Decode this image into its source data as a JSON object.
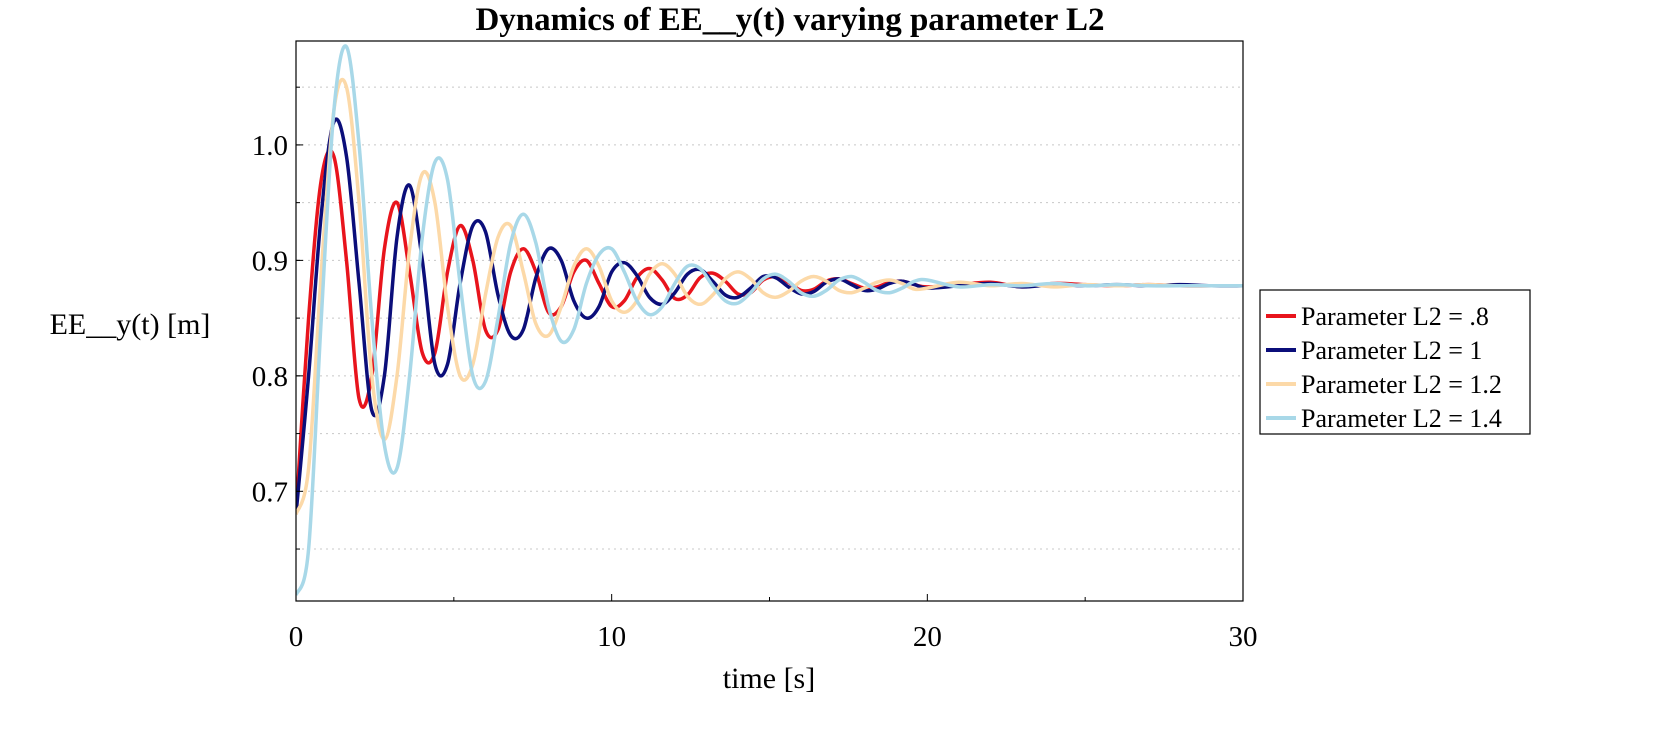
{
  "chart_data": {
    "type": "line",
    "title": "Dynamics of EE__y(t) varying parameter L2",
    "xlabel": "time [s]",
    "ylabel": "EE__y(t) [m]",
    "xlim": [
      0,
      30
    ],
    "ylim": [
      0.605,
      1.09
    ],
    "x_ticks": [
      0,
      10,
      20,
      30
    ],
    "x_tick_labels": [
      "0",
      "10",
      "20",
      "30"
    ],
    "y_ticks": [
      0.7,
      0.8,
      0.9,
      1.0
    ],
    "y_tick_labels": [
      "0.7",
      "0.8",
      "0.9",
      "1.0"
    ],
    "grid": "horizontal dotted",
    "legend_position": "right",
    "series": [
      {
        "name": "Parameter L2 = .8",
        "color": "#e8141c",
        "x": [
          0,
          0.4,
          0.8,
          1.2,
          1.6,
          2.0,
          2.4,
          2.8,
          3.2,
          3.6,
          4.0,
          4.4,
          4.8,
          5.2,
          5.6,
          6.0,
          6.4,
          6.8,
          7.2,
          7.6,
          8.0,
          8.4,
          8.8,
          9.2,
          9.6,
          10.0,
          10.4,
          10.8,
          11.2,
          11.6,
          12.0,
          12.4,
          12.8,
          13.2,
          13.6,
          14.0,
          14.4,
          14.8,
          15.2,
          15.6,
          16.0,
          16.4,
          16.8,
          17.2,
          17.6,
          18.0,
          18.4,
          18.8,
          19.2,
          19.6,
          20.0,
          21.0,
          22.0,
          23.0,
          24.0,
          25.0,
          26.0,
          27.0,
          28.0,
          29.0,
          30.0
        ],
        "y": [
          0.68,
          0.85,
          0.97,
          0.99,
          0.9,
          0.78,
          0.8,
          0.91,
          0.95,
          0.89,
          0.82,
          0.82,
          0.89,
          0.93,
          0.9,
          0.84,
          0.84,
          0.89,
          0.91,
          0.89,
          0.855,
          0.86,
          0.89,
          0.9,
          0.88,
          0.86,
          0.865,
          0.885,
          0.893,
          0.883,
          0.867,
          0.87,
          0.885,
          0.889,
          0.882,
          0.871,
          0.872,
          0.883,
          0.886,
          0.881,
          0.874,
          0.875,
          0.882,
          0.884,
          0.88,
          0.876,
          0.877,
          0.881,
          0.882,
          0.879,
          0.877,
          0.879,
          0.881,
          0.877,
          0.88,
          0.879,
          0.878,
          0.879,
          0.878,
          0.878,
          0.878
        ]
      },
      {
        "name": "Parameter L2 = 1",
        "color": "#0b0e7a",
        "x": [
          0,
          0.4,
          0.8,
          1.2,
          1.6,
          2.0,
          2.4,
          2.8,
          3.2,
          3.6,
          4.0,
          4.4,
          4.8,
          5.2,
          5.6,
          6.0,
          6.4,
          6.8,
          7.2,
          7.6,
          8.0,
          8.4,
          8.8,
          9.2,
          9.6,
          10.0,
          10.4,
          10.8,
          11.2,
          11.6,
          12.0,
          12.4,
          12.8,
          13.2,
          13.6,
          14.0,
          14.4,
          14.8,
          15.2,
          15.6,
          16.0,
          16.4,
          16.8,
          17.2,
          17.6,
          18.0,
          18.4,
          18.8,
          19.2,
          19.6,
          20.0,
          21.0,
          22.0,
          23.0,
          24.0,
          25.0,
          26.0,
          27.0,
          28.0,
          29.0,
          30.0
        ],
        "y": [
          0.68,
          0.8,
          0.94,
          1.02,
          0.99,
          0.88,
          0.77,
          0.8,
          0.92,
          0.965,
          0.9,
          0.81,
          0.81,
          0.88,
          0.93,
          0.925,
          0.87,
          0.835,
          0.84,
          0.885,
          0.91,
          0.9,
          0.865,
          0.85,
          0.86,
          0.89,
          0.898,
          0.887,
          0.868,
          0.862,
          0.872,
          0.888,
          0.892,
          0.882,
          0.87,
          0.868,
          0.876,
          0.886,
          0.885,
          0.877,
          0.871,
          0.873,
          0.881,
          0.884,
          0.879,
          0.874,
          0.875,
          0.88,
          0.882,
          0.879,
          0.876,
          0.878,
          0.88,
          0.877,
          0.879,
          0.878,
          0.879,
          0.878,
          0.879,
          0.878,
          0.878
        ]
      },
      {
        "name": "Parameter L2 = 1.2",
        "color": "#fcd9a8",
        "x": [
          0,
          0.4,
          0.8,
          1.2,
          1.6,
          2.0,
          2.4,
          2.8,
          3.2,
          3.6,
          4.0,
          4.4,
          4.8,
          5.2,
          5.6,
          6.0,
          6.4,
          6.8,
          7.2,
          7.6,
          8.0,
          8.4,
          8.8,
          9.2,
          9.6,
          10.0,
          10.4,
          10.8,
          11.2,
          11.6,
          12.0,
          12.4,
          12.8,
          13.2,
          13.6,
          14.0,
          14.4,
          14.8,
          15.2,
          15.6,
          16.0,
          16.4,
          16.8,
          17.2,
          17.6,
          18.0,
          18.4,
          18.8,
          19.2,
          19.6,
          20.0,
          21.0,
          22.0,
          23.0,
          24.0,
          25.0,
          26.0,
          27.0,
          28.0,
          29.0,
          30.0
        ],
        "y": [
          0.68,
          0.72,
          0.89,
          1.03,
          1.05,
          0.95,
          0.8,
          0.745,
          0.8,
          0.91,
          0.975,
          0.95,
          0.86,
          0.8,
          0.81,
          0.87,
          0.92,
          0.93,
          0.89,
          0.845,
          0.835,
          0.86,
          0.895,
          0.91,
          0.895,
          0.865,
          0.855,
          0.865,
          0.888,
          0.897,
          0.888,
          0.869,
          0.862,
          0.87,
          0.884,
          0.89,
          0.884,
          0.872,
          0.868,
          0.873,
          0.882,
          0.886,
          0.882,
          0.874,
          0.872,
          0.876,
          0.881,
          0.883,
          0.88,
          0.875,
          0.876,
          0.881,
          0.878,
          0.88,
          0.877,
          0.879,
          0.878,
          0.879,
          0.878,
          0.878,
          0.878
        ]
      },
      {
        "name": "Parameter L2 = 1.4",
        "color": "#a8d8e8",
        "x": [
          0,
          0.4,
          0.8,
          1.2,
          1.6,
          2.0,
          2.4,
          2.8,
          3.2,
          3.6,
          4.0,
          4.4,
          4.8,
          5.2,
          5.6,
          6.0,
          6.4,
          6.8,
          7.2,
          7.6,
          8.0,
          8.4,
          8.8,
          9.2,
          9.6,
          10.0,
          10.4,
          10.8,
          11.2,
          11.6,
          12.0,
          12.4,
          12.8,
          13.2,
          13.6,
          14.0,
          14.4,
          14.8,
          15.2,
          15.6,
          16.0,
          16.4,
          16.8,
          17.2,
          17.6,
          18.0,
          18.4,
          18.8,
          19.2,
          19.6,
          20.0,
          21.0,
          22.0,
          23.0,
          24.0,
          25.0,
          26.0,
          27.0,
          28.0,
          29.0,
          30.0
        ],
        "y": [
          0.61,
          0.65,
          0.85,
          1.03,
          1.085,
          1.0,
          0.85,
          0.74,
          0.72,
          0.8,
          0.92,
          0.985,
          0.97,
          0.88,
          0.8,
          0.795,
          0.85,
          0.915,
          0.94,
          0.915,
          0.86,
          0.83,
          0.84,
          0.88,
          0.905,
          0.91,
          0.89,
          0.865,
          0.853,
          0.86,
          0.88,
          0.895,
          0.893,
          0.878,
          0.865,
          0.863,
          0.872,
          0.884,
          0.888,
          0.882,
          0.872,
          0.869,
          0.874,
          0.883,
          0.886,
          0.881,
          0.874,
          0.872,
          0.876,
          0.882,
          0.883,
          0.877,
          0.879,
          0.878,
          0.88,
          0.878,
          0.879,
          0.878,
          0.878,
          0.878,
          0.878
        ]
      }
    ]
  }
}
